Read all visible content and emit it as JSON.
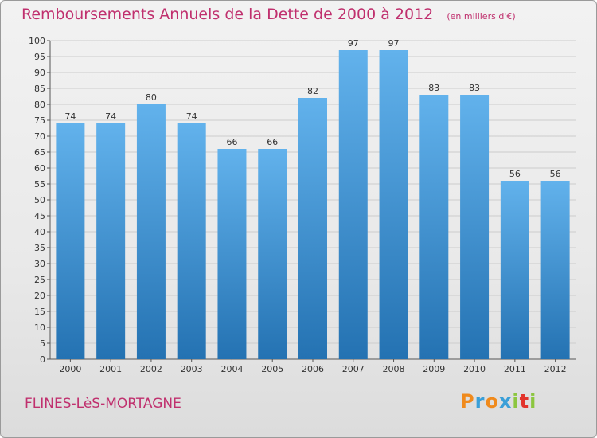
{
  "header": {
    "title": "Remboursements Annuels de la Dette de 2000 à 2012",
    "unit": "(en milliers d'€)"
  },
  "footer": {
    "commune": "FLINES-LèS-MORTAGNE",
    "logo_text": "Proxiti",
    "logo_colors": [
      "#f08a1c",
      "#3a9fd8",
      "#f08a1c",
      "#3a9fd8",
      "#8cc63f",
      "#e2342c",
      "#8cc63f"
    ]
  },
  "colors": {
    "title": "#c0306e",
    "bar_top": "#62b2ec",
    "bar_bottom": "#2472b2",
    "grid": "#cccccc"
  },
  "chart_data": {
    "type": "bar",
    "categories": [
      "2000",
      "2001",
      "2002",
      "2003",
      "2004",
      "2005",
      "2006",
      "2007",
      "2008",
      "2009",
      "2010",
      "2011",
      "2012"
    ],
    "values": [
      74,
      74,
      80,
      74,
      66,
      66,
      82,
      97,
      97,
      83,
      83,
      56,
      56
    ],
    "ylim": [
      0,
      100
    ],
    "ytick_step": 5,
    "grid": true,
    "data_labels": true
  }
}
